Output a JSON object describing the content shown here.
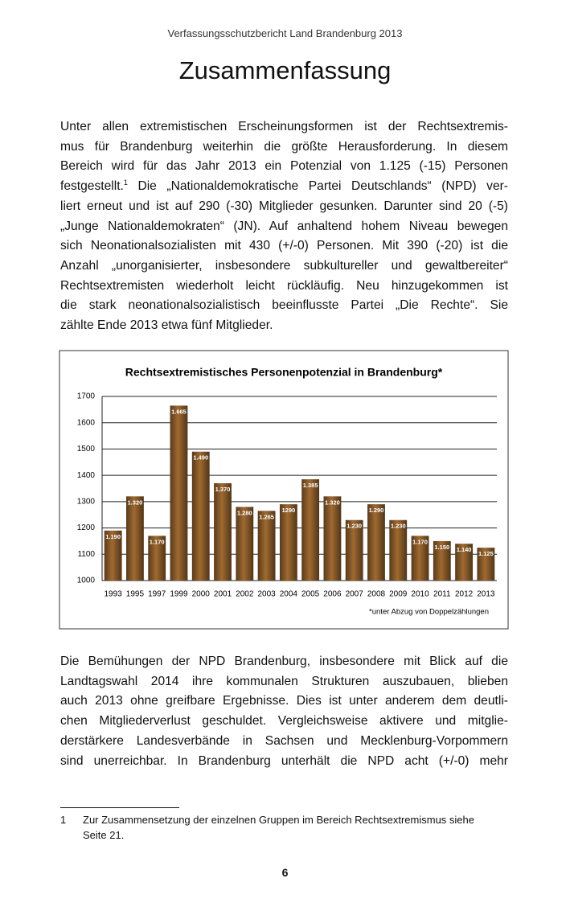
{
  "header": {
    "running_title": "Verfassungsschutzbericht Land Brandenburg 2013",
    "title": "Zusammenfassung"
  },
  "paragraphs": [
    {
      "lines": [
        "Unter allen extremistischen Erscheinungsformen ist der Rechtsextremis-",
        "mus für Brandenburg weiterhin die größte Herausforderung. In diesem",
        "Bereich wird für das Jahr 2013 ein Potenzial von 1.125 (-15) Personen",
        [
          "festgestellt.",
          "1",
          " Die „Nationaldemokratische Partei Deutschlands“ (NPD) ver-"
        ],
        "liert erneut und ist auf 290 (-30) Mitglieder gesunken. Darunter sind 20 (-5)",
        "„Junge Nationaldemokraten“ (JN). Auf anhaltend hohem Niveau bewegen",
        "sich Neonationalsozialisten mit 430 (+/-0) Personen. Mit 390 (-20) ist die",
        "Anzahl „unorganisierter, insbesondere subkultureller und gewaltbereiter“",
        "Rechtsextremisten wiederholt leicht rückläufig. Neu hinzugekommen ist",
        "die stark neonationalsozialistisch beeinflusste Partei „Die Rechte“. Sie",
        "zählte Ende 2013 etwa fünf Mitglieder."
      ]
    },
    {
      "lines": [
        "Die Bemühungen der NPD Brandenburg, insbesondere mit Blick auf die",
        "Landtagswahl 2014 ihre kommunalen Strukturen auszubauen, blieben",
        "auch 2013 ohne greifbare Ergebnisse. Dies ist unter anderem dem deutli-",
        "chen Mitgliederverlust geschuldet. Vergleichsweise aktivere und mitglie-",
        "derstärkere Landesverbände in Sachsen und Mecklenburg-Vorpommern",
        "sind unerreichbar. In Brandenburg unterhält die NPD acht (+/-0) mehr"
      ]
    }
  ],
  "chart_data": {
    "type": "bar",
    "title": "Rechtsextremistisches Personenpotenzial in Brandenburg*",
    "note": "*unter Abzug von Doppelzählungen",
    "categories": [
      "1993",
      "1995",
      "1997",
      "1999",
      "2000",
      "2001",
      "2002",
      "2003",
      "2004",
      "2005",
      "2006",
      "2007",
      "2008",
      "2009",
      "2010",
      "2011",
      "2012",
      "2013"
    ],
    "values": [
      1190,
      1320,
      1170,
      1665,
      1490,
      1370,
      1280,
      1265,
      1290,
      1385,
      1320,
      1230,
      1290,
      1230,
      1170,
      1150,
      1140,
      1125
    ],
    "value_labels": [
      "1.190",
      "1.320",
      "1.170",
      "1.665",
      "1.490",
      "1.370",
      "1.280",
      "1.265",
      "1290",
      "1.385",
      "1.320",
      "1.230",
      "1.290",
      "1.230",
      "1.170",
      "1.150",
      "1.140",
      "1.125"
    ],
    "color": "#a06a30",
    "ylim": [
      1000,
      1700
    ],
    "yticks": [
      1000,
      1100,
      1200,
      1300,
      1400,
      1500,
      1600,
      1700
    ],
    "grid": true
  },
  "footnote": {
    "number": "1",
    "lines": [
      "Zur Zusammensetzung der einzelnen Gruppen im Bereich Rechtsextremismus siehe",
      "Seite 21."
    ]
  },
  "page_number": "6"
}
